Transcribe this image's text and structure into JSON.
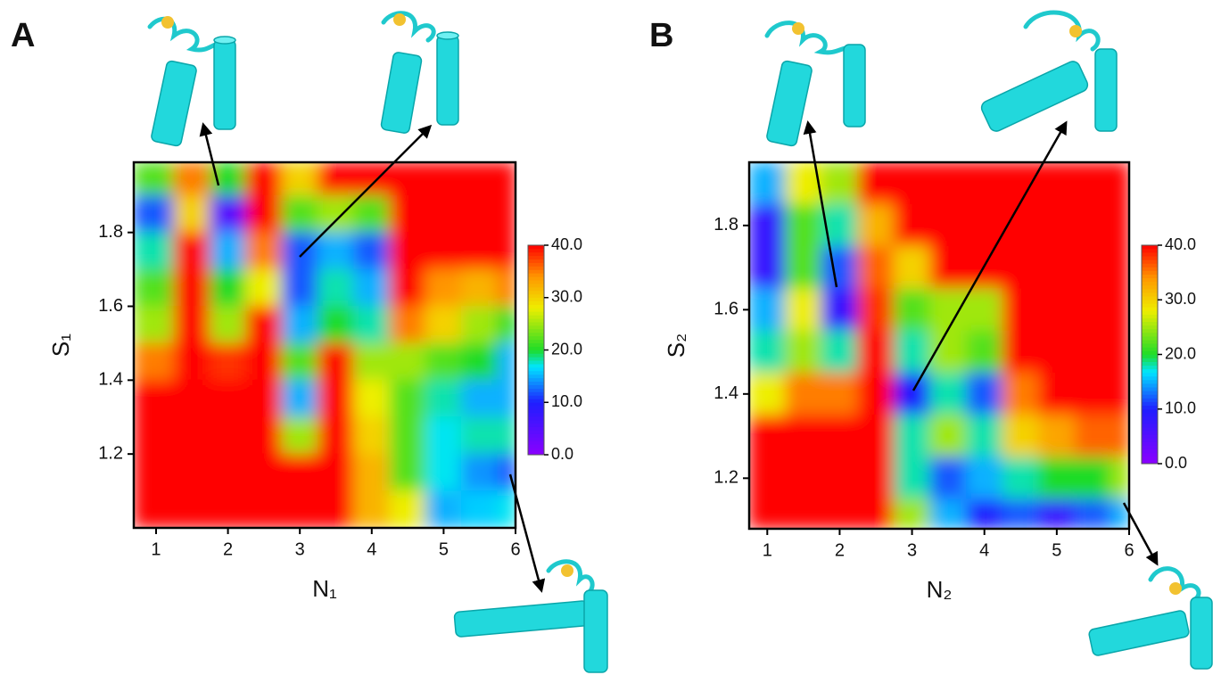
{
  "chart_data": [
    {
      "type": "heatmap",
      "panel": "A",
      "x_label": "N₁",
      "y_label": "S₁",
      "xlim": [
        0.69,
        6
      ],
      "ylim": [
        1.0,
        1.99
      ],
      "xticks": [
        1,
        2,
        3,
        4,
        5,
        6
      ],
      "yticks": [
        1.2,
        1.4,
        1.6,
        1.8
      ],
      "x": [
        1,
        1.5,
        2,
        2.5,
        3,
        3.5,
        4,
        4.5,
        5,
        5.5,
        6
      ],
      "y": [
        1.95,
        1.85,
        1.75,
        1.65,
        1.55,
        1.45,
        1.35,
        1.25,
        1.15,
        1.05
      ],
      "z": [
        [
          22,
          35,
          20,
          40,
          30,
          40,
          40,
          40,
          40,
          40,
          40
        ],
        [
          12,
          30,
          5,
          40,
          22,
          25,
          22,
          40,
          40,
          40,
          40
        ],
        [
          18,
          40,
          15,
          35,
          12,
          15,
          12,
          40,
          40,
          40,
          40
        ],
        [
          22,
          40,
          20,
          28,
          12,
          18,
          15,
          40,
          34,
          32,
          35
        ],
        [
          25,
          40,
          25,
          40,
          15,
          20,
          18,
          35,
          30,
          25,
          20
        ],
        [
          35,
          40,
          38,
          40,
          22,
          40,
          25,
          25,
          22,
          20,
          15
        ],
        [
          40,
          40,
          40,
          40,
          15,
          40,
          28,
          22,
          18,
          15,
          15
        ],
        [
          40,
          40,
          40,
          40,
          25,
          40,
          30,
          22,
          17,
          18,
          18
        ],
        [
          40,
          40,
          40,
          40,
          40,
          40,
          32,
          22,
          17,
          14,
          12
        ],
        [
          40,
          40,
          40,
          40,
          40,
          40,
          32,
          28,
          15,
          16,
          17
        ]
      ],
      "clim": [
        0,
        40
      ],
      "cticks": [
        {
          "value": 0,
          "label": "0.0"
        },
        {
          "value": 10,
          "label": "10.0"
        },
        {
          "value": 20,
          "label": "20.0"
        },
        {
          "value": 30,
          "label": "30.0"
        },
        {
          "value": 40,
          "label": "40.0"
        }
      ]
    },
    {
      "type": "heatmap",
      "panel": "B",
      "x_label": "N₂",
      "y_label": "S₂",
      "xlim": [
        0.75,
        6
      ],
      "ylim": [
        1.08,
        1.95
      ],
      "xticks": [
        1,
        2,
        3,
        4,
        5,
        6
      ],
      "yticks": [
        1.2,
        1.4,
        1.6,
        1.8
      ],
      "x": [
        1,
        1.5,
        2,
        2.5,
        3,
        3.5,
        4,
        4.5,
        5,
        5.5,
        6
      ],
      "y": [
        1.9,
        1.8,
        1.7,
        1.6,
        1.5,
        1.4,
        1.3,
        1.2,
        1.1
      ],
      "z": [
        [
          15,
          28,
          25,
          40,
          40,
          40,
          40,
          40,
          40,
          40,
          40
        ],
        [
          8,
          22,
          18,
          32,
          40,
          40,
          40,
          40,
          40,
          40,
          40
        ],
        [
          8,
          22,
          12,
          36,
          30,
          40,
          40,
          40,
          40,
          40,
          40
        ],
        [
          15,
          28,
          8,
          38,
          22,
          25,
          25,
          40,
          40,
          40,
          40
        ],
        [
          18,
          25,
          18,
          40,
          18,
          25,
          22,
          40,
          40,
          40,
          40
        ],
        [
          28,
          35,
          35,
          40,
          10,
          18,
          12,
          35,
          40,
          40,
          40
        ],
        [
          40,
          40,
          40,
          40,
          18,
          25,
          18,
          30,
          33,
          36,
          36
        ],
        [
          40,
          40,
          40,
          40,
          18,
          12,
          15,
          18,
          20,
          20,
          25
        ],
        [
          40,
          40,
          40,
          40,
          25,
          15,
          10,
          12,
          8,
          12,
          15
        ]
      ],
      "clim": [
        0,
        40
      ],
      "cticks": [
        {
          "value": 0,
          "label": "0.0"
        },
        {
          "value": 10,
          "label": "10.0"
        },
        {
          "value": 20,
          "label": "20.0"
        },
        {
          "value": 30,
          "label": "30.0"
        },
        {
          "value": 40,
          "label": "40.0"
        }
      ]
    }
  ]
}
